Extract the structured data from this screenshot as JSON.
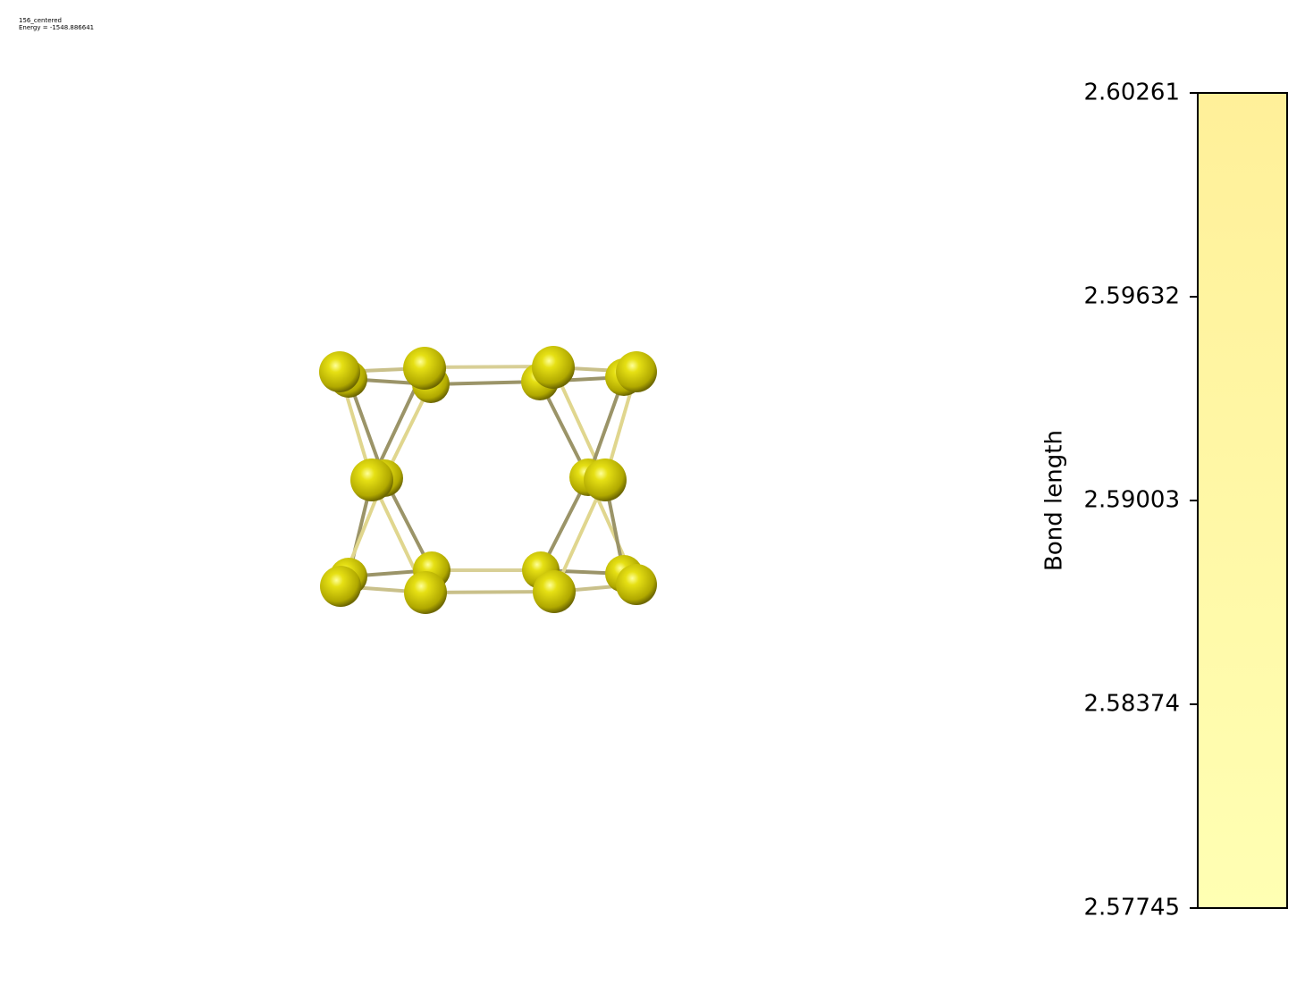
{
  "header": {
    "title": "156_centered",
    "energy": "Energy = -1548.886641"
  },
  "colorbar": {
    "label": "Bond length",
    "lim": [
      2.57745,
      2.60261
    ],
    "ticks": [
      2.57745,
      2.58374,
      2.59003,
      2.59632,
      2.60261
    ],
    "colors": [
      "#ffffb3",
      "#fff099"
    ]
  }
}
